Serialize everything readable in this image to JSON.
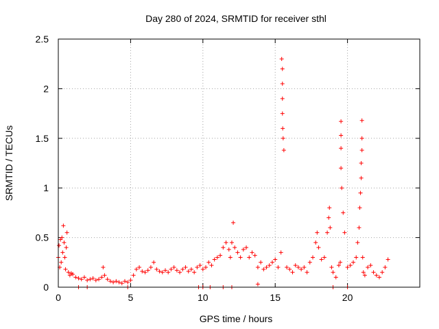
{
  "chart_data": {
    "type": "scatter",
    "title": "Day 280 of 2024, SRMTID for receiver sthl",
    "xlabel": "GPS time / hours",
    "ylabel": "SRMTID / TECUs",
    "xlim": [
      0,
      25
    ],
    "ylim": [
      0,
      2.5
    ],
    "xticks": [
      0,
      5,
      10,
      15,
      20
    ],
    "yticks": [
      0,
      0.5,
      1,
      1.5,
      2,
      2.5
    ],
    "xtick_labels": [
      "0",
      "5",
      "10",
      "15",
      "20"
    ],
    "ytick_labels": [
      "0",
      "0.5",
      "1",
      "1.5",
      "2",
      "2.5"
    ],
    "grid": true,
    "marker": "+",
    "series": [
      {
        "name": "SRMTID",
        "color": "#ff0000",
        "x": [
          0.0,
          0.05,
          0.1,
          0.15,
          0.2,
          0.25,
          0.3,
          0.35,
          0.4,
          0.45,
          0.5,
          0.55,
          0.6,
          0.7,
          0.8,
          0.9,
          1.0,
          1.2,
          1.4,
          1.6,
          1.8,
          2.0,
          2.2,
          2.4,
          2.6,
          2.8,
          3.0,
          3.1,
          3.2,
          3.4,
          3.6,
          3.8,
          4.0,
          4.2,
          4.4,
          4.6,
          4.8,
          5.0,
          5.2,
          5.4,
          5.6,
          5.8,
          6.0,
          6.2,
          6.4,
          6.6,
          6.8,
          7.0,
          7.2,
          7.4,
          7.6,
          7.8,
          8.0,
          8.2,
          8.4,
          8.6,
          8.8,
          9.0,
          9.2,
          9.4,
          9.6,
          9.8,
          10.0,
          10.2,
          10.4,
          10.6,
          10.8,
          11.0,
          11.2,
          11.4,
          11.6,
          11.8,
          11.9,
          12.0,
          12.1,
          12.2,
          12.4,
          12.6,
          12.8,
          13.0,
          13.2,
          13.4,
          13.6,
          13.8,
          14.0,
          14.2,
          14.4,
          14.6,
          14.8,
          15.0,
          15.2,
          15.4,
          15.45,
          15.5,
          15.5,
          15.5,
          15.5,
          15.52,
          15.55,
          15.6,
          15.8,
          16.0,
          16.2,
          16.4,
          16.6,
          16.8,
          17.0,
          17.2,
          17.4,
          17.6,
          17.8,
          17.9,
          18.0,
          18.2,
          18.4,
          18.6,
          18.7,
          18.75,
          18.8,
          18.9,
          19.0,
          19.2,
          19.4,
          19.5,
          19.55,
          19.55,
          19.55,
          19.55,
          19.6,
          19.7,
          19.8,
          20.0,
          20.2,
          20.4,
          20.6,
          20.7,
          20.8,
          20.85,
          20.9,
          20.95,
          20.95,
          21.0,
          21.0,
          21.0,
          21.05,
          21.1,
          21.2,
          21.4,
          21.6,
          21.8,
          22.0,
          22.2,
          22.4,
          22.6,
          22.8,
          1.4,
          2.0,
          4.8,
          9.7,
          10.0,
          10.5,
          11.4,
          12.0,
          13.8,
          19.0,
          20.0
        ],
        "y": [
          0.3,
          0.42,
          0.2,
          0.48,
          0.25,
          0.5,
          0.35,
          0.62,
          0.45,
          0.3,
          0.18,
          0.4,
          0.55,
          0.15,
          0.12,
          0.14,
          0.13,
          0.1,
          0.09,
          0.08,
          0.1,
          0.07,
          0.08,
          0.09,
          0.07,
          0.08,
          0.1,
          0.2,
          0.12,
          0.08,
          0.06,
          0.05,
          0.06,
          0.05,
          0.04,
          0.06,
          0.05,
          0.07,
          0.12,
          0.18,
          0.2,
          0.16,
          0.15,
          0.17,
          0.2,
          0.25,
          0.18,
          0.16,
          0.15,
          0.17,
          0.15,
          0.18,
          0.2,
          0.17,
          0.15,
          0.18,
          0.2,
          0.16,
          0.18,
          0.15,
          0.2,
          0.22,
          0.18,
          0.2,
          0.25,
          0.22,
          0.28,
          0.3,
          0.32,
          0.4,
          0.45,
          0.38,
          0.3,
          0.45,
          0.65,
          0.4,
          0.35,
          0.3,
          0.38,
          0.4,
          0.3,
          0.35,
          0.32,
          0.2,
          0.25,
          0.18,
          0.2,
          0.22,
          0.25,
          0.28,
          0.2,
          0.35,
          2.3,
          2.2,
          2.05,
          1.9,
          1.75,
          1.6,
          1.5,
          1.38,
          0.2,
          0.18,
          0.15,
          0.22,
          0.2,
          0.18,
          0.2,
          0.15,
          0.25,
          0.3,
          0.45,
          0.55,
          0.4,
          0.28,
          0.3,
          0.55,
          0.7,
          0.8,
          0.6,
          0.2,
          0.15,
          0.1,
          0.22,
          0.25,
          1.67,
          1.53,
          1.4,
          1.2,
          1.0,
          0.75,
          0.55,
          0.2,
          0.22,
          0.25,
          0.3,
          0.45,
          0.6,
          0.8,
          0.95,
          1.1,
          1.25,
          1.38,
          1.5,
          1.68,
          0.3,
          0.15,
          0.12,
          0.2,
          0.22,
          0.15,
          0.12,
          0.1,
          0.15,
          0.2,
          0.28,
          0.0,
          0.0,
          0.0,
          0.0,
          0.0,
          0.0,
          0.0,
          0.0,
          0.03,
          0.0,
          0.0
        ]
      }
    ]
  }
}
